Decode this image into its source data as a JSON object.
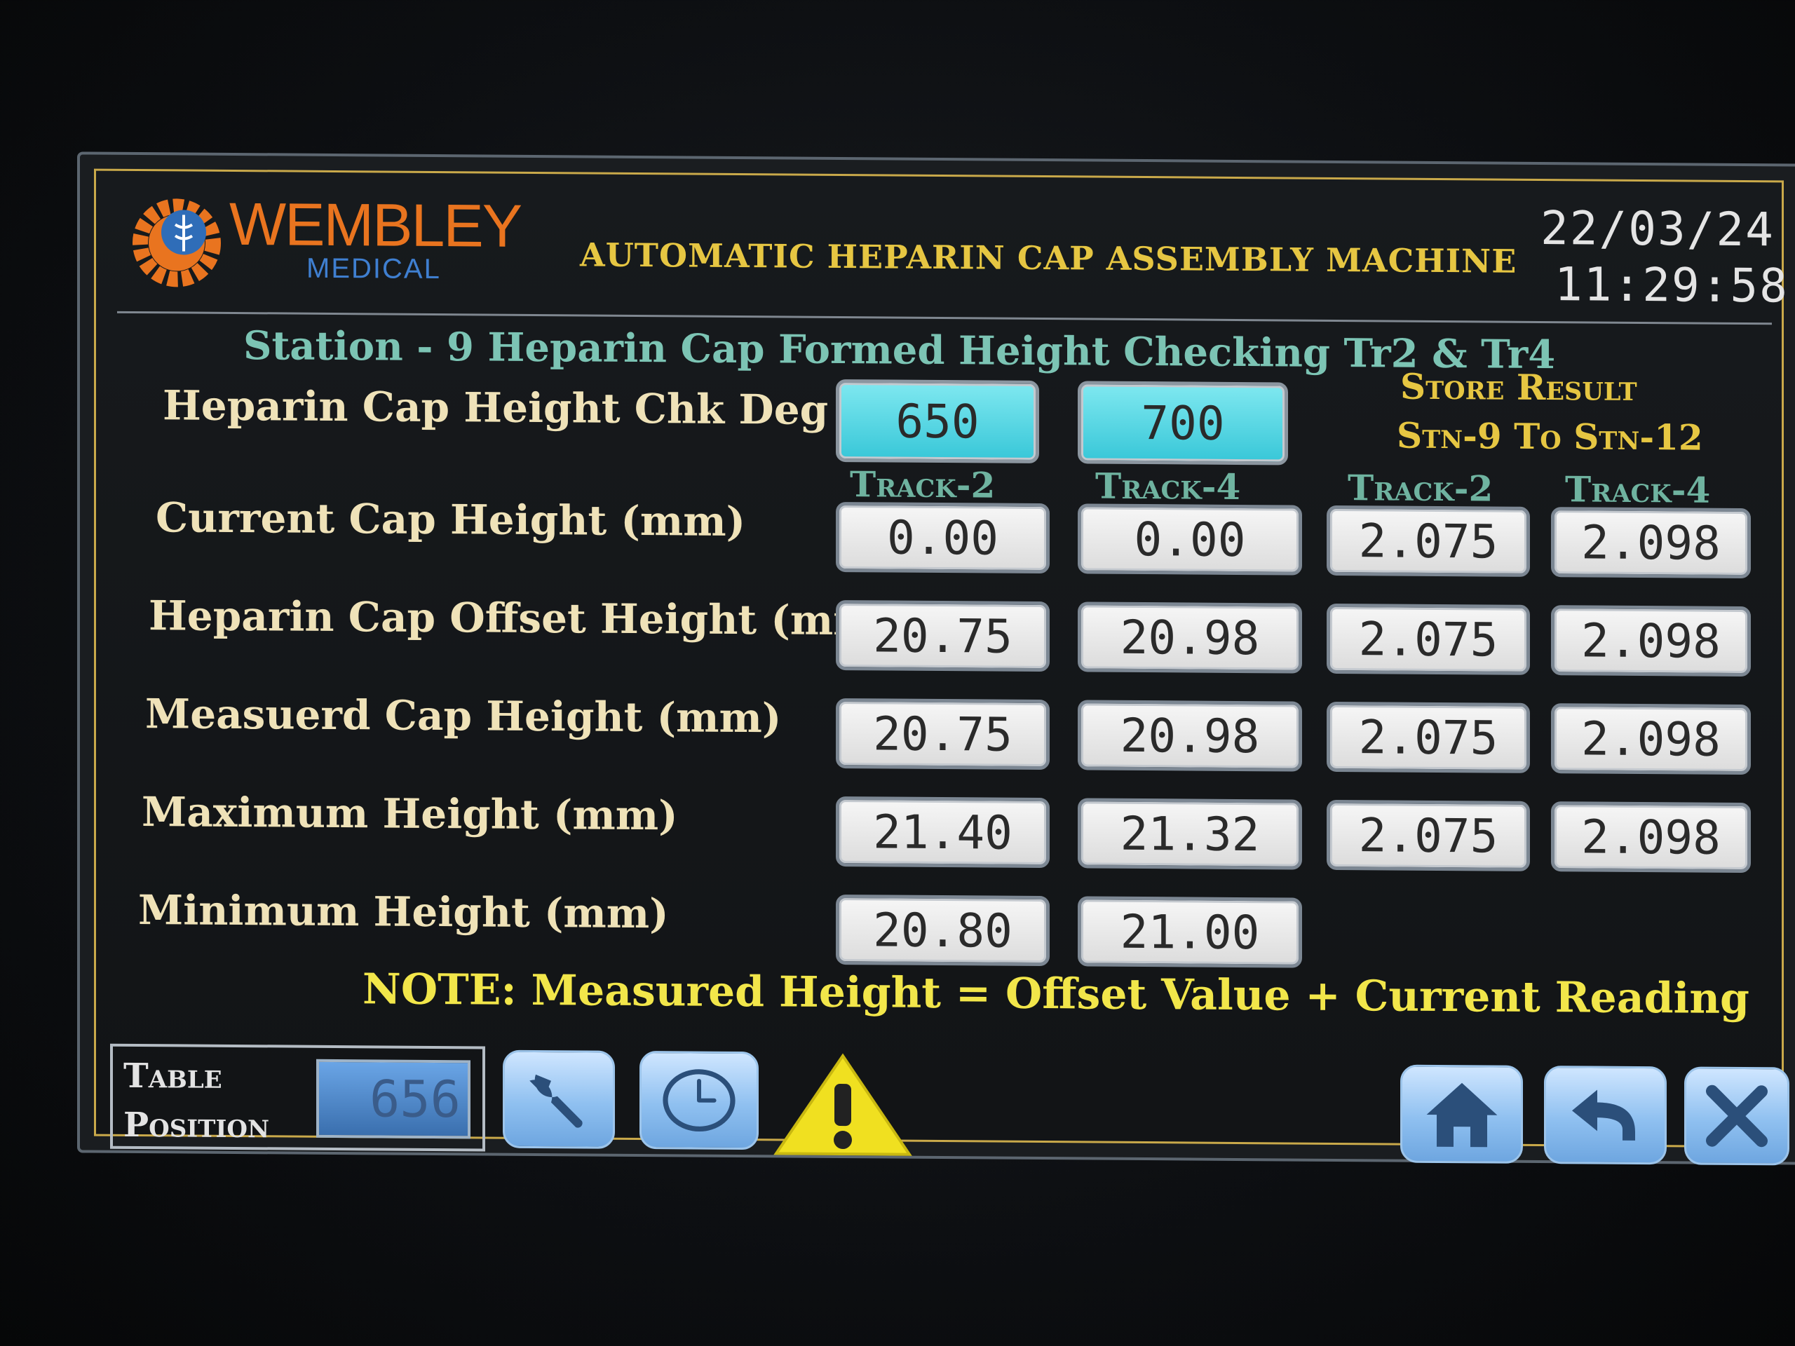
{
  "header": {
    "logo_word": "WEMBLEY",
    "logo_sub": "MEDICAL",
    "title": "AUTOMATIC HEPARIN CAP ASSEMBLY MACHINE",
    "date": "22/03/24",
    "time": "11:29:58"
  },
  "station_title": "Station - 9 Heparin Cap Formed Height Checking Tr2 & Tr4",
  "chk_deg": {
    "label": "Heparin Cap Height Chk Deg",
    "track2": "650",
    "track4": "700"
  },
  "store_result": {
    "line1": "Store Result",
    "line2": "Stn-9 To Stn-12"
  },
  "columns": [
    "Track-2",
    "Track-4",
    "Track-2",
    "Track-4"
  ],
  "rows": [
    {
      "label": "Current Cap Height (mm)",
      "values": [
        "0.00",
        "0.00",
        "2.075",
        "2.098"
      ]
    },
    {
      "label": "Heparin Cap Offset Height (mm)",
      "values": [
        "20.75",
        "20.98",
        "2.075",
        "2.098"
      ]
    },
    {
      "label": "Measuerd Cap Height (mm)",
      "values": [
        "20.75",
        "20.98",
        "2.075",
        "2.098"
      ]
    },
    {
      "label": "Maximum Height (mm)",
      "values": [
        "21.40",
        "21.32",
        "2.075",
        "2.098"
      ]
    },
    {
      "label": "Minimum Height (mm)",
      "values": [
        "20.80",
        "21.00"
      ]
    }
  ],
  "note": "NOTE: Measured Height = Offset Value + Current Reading",
  "table_position": {
    "label_line1": "Table",
    "label_line2": "Position",
    "value": "656"
  },
  "icons": {
    "settings": "wrench-icon",
    "timer": "clock-icon",
    "alarm": "warning-icon",
    "home": "home-icon",
    "back": "back-arrow-icon",
    "close": "close-icon"
  },
  "colors": {
    "title_gold": "#e6c642",
    "station_teal": "#7cc4b4",
    "input_cyan": "#38c7d8",
    "note_yellow": "#f2e64a",
    "button_blue": "#8fc0f0"
  }
}
